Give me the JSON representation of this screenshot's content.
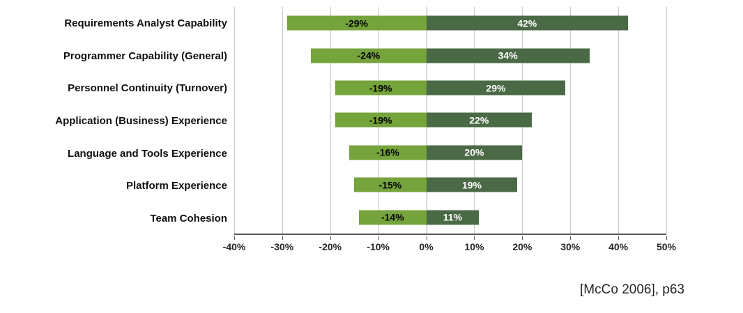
{
  "caption": "[McCo 2006], p63",
  "chart_data": {
    "type": "bar",
    "orientation": "horizontal",
    "title": "",
    "xlabel": "",
    "ylabel": "",
    "categories": [
      "Requirements Analyst Capability",
      "Programmer Capability (General)",
      "Personnel Continuity (Turnover)",
      "Application (Business) Experience",
      "Language and Tools Experience",
      "Platform Experience",
      "Team Cohesion"
    ],
    "series": [
      {
        "name": "negative-impact",
        "color": "#75a33c",
        "label_color": "#000000",
        "values": [
          -29,
          -24,
          -19,
          -19,
          -16,
          -15,
          -14
        ],
        "labels": [
          "-29%",
          "-24%",
          "-19%",
          "-19%",
          "-16%",
          "-15%",
          "-14%"
        ]
      },
      {
        "name": "positive-impact",
        "color": "#4a6a45",
        "label_color": "#ffffff",
        "values": [
          42,
          34,
          29,
          22,
          20,
          19,
          11
        ],
        "labels": [
          "42%",
          "34%",
          "29%",
          "22%",
          "20%",
          "19%",
          "11%"
        ]
      }
    ],
    "xlim": [
      -40,
      50
    ],
    "xtick_values": [
      -40,
      -30,
      -20,
      -10,
      0,
      10,
      20,
      30,
      40,
      50
    ],
    "xticks": [
      "-40%",
      "-30%",
      "-20%",
      "-10%",
      "0%",
      "10%",
      "20%",
      "30%",
      "40%",
      "50%"
    ],
    "grid": true,
    "legend_position": "none"
  }
}
